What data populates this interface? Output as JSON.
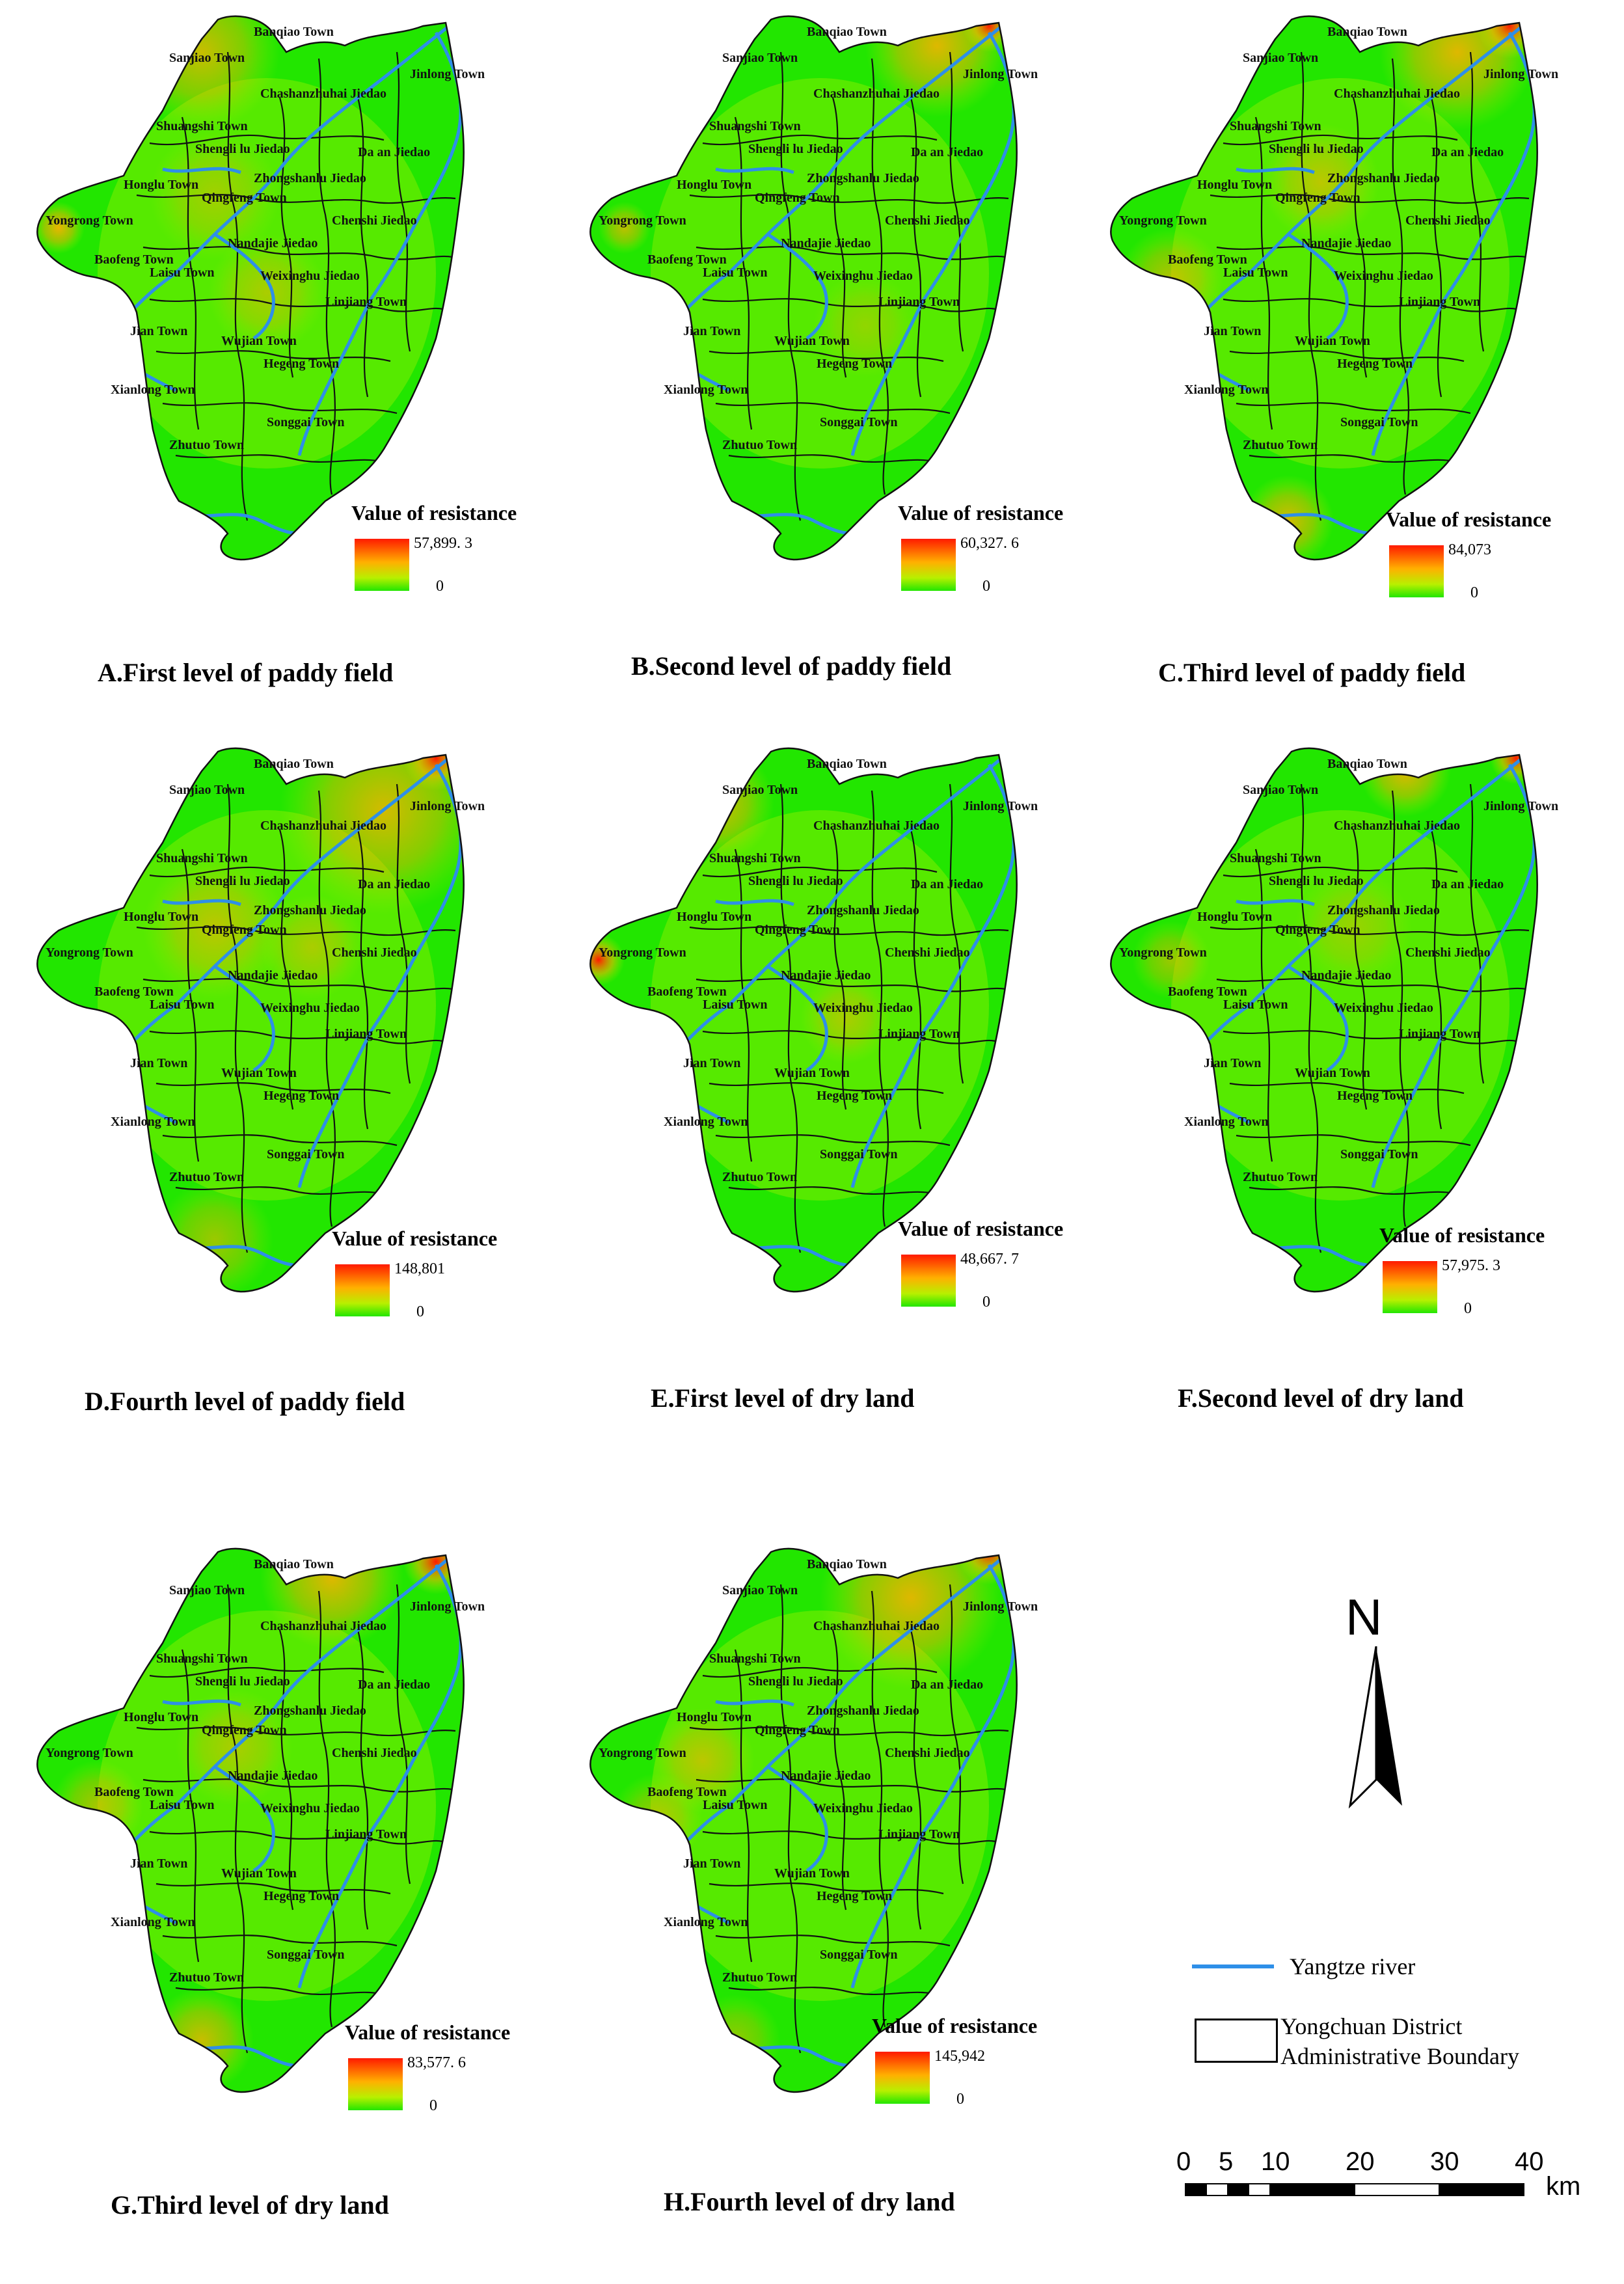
{
  "panels": [
    {
      "id": "A",
      "caption": "A.First level of paddy field",
      "legend_title": "Value of resistance",
      "legend_max": "57,899. 3",
      "legend_min": "0"
    },
    {
      "id": "B",
      "caption": "B.Second level of paddy field",
      "legend_title": "Value of resistance",
      "legend_max": "60,327. 6",
      "legend_min": "0"
    },
    {
      "id": "C",
      "caption": "C.Third level of paddy field",
      "legend_title": "Value of resistance",
      "legend_max": "84,073",
      "legend_min": "0"
    },
    {
      "id": "D",
      "caption": "D.Fourth level of paddy field",
      "legend_title": "Value of resistance",
      "legend_max": "148,801",
      "legend_min": "0"
    },
    {
      "id": "E",
      "caption": "E.First level of dry land",
      "legend_title": "Value of resistance",
      "legend_max": "48,667. 7",
      "legend_min": "0"
    },
    {
      "id": "F",
      "caption": "F.Second level of dry land",
      "legend_title": "Value of resistance",
      "legend_max": "57,975. 3",
      "legend_min": "0"
    },
    {
      "id": "G",
      "caption": "G.Third level of dry land",
      "legend_title": "Value of resistance",
      "legend_max": "83,577. 6",
      "legend_min": "0"
    },
    {
      "id": "H",
      "caption": "H.Fourth level of dry land",
      "legend_title": "Value of resistance",
      "legend_max": "145,942",
      "legend_min": "0"
    }
  ],
  "town_labels": [
    "Banqiao Town",
    "Sanjiao Town",
    "Jinlong Town",
    "Chashanzhuhai Jiedao",
    "Shuangshi Town",
    "Shengli lu Jiedao",
    "Da an Jiedao",
    "Honglu Town",
    "Zhongshanlu Jiedao",
    "Qingfeng Town",
    "Yongrong Town",
    "Chenshi Jiedao",
    "Nandajie Jiedao",
    "Baofeng Town",
    "Laisu Town",
    "Weixinghu Jiedao",
    "Linjiang Town",
    "Jian Town",
    "Wujian Town",
    "Hegeng Town",
    "Xianlong Town",
    "Songgai Town",
    "Zhutuo Town"
  ],
  "legend": {
    "north_label": "N",
    "river_label": "Yangtze river",
    "boundary_label_line1": "Yongchuan District",
    "boundary_label_line2": "Administrative Boundary",
    "river_color": "#2e8fe8"
  },
  "scale_bar": {
    "ticks": [
      "0",
      "5",
      "10",
      "20",
      "30",
      "40"
    ],
    "unit": "km"
  },
  "colors": {
    "low": "#22e600",
    "mid": "#b8f000",
    "high": "#ffb000",
    "max": "#ff1a00"
  }
}
